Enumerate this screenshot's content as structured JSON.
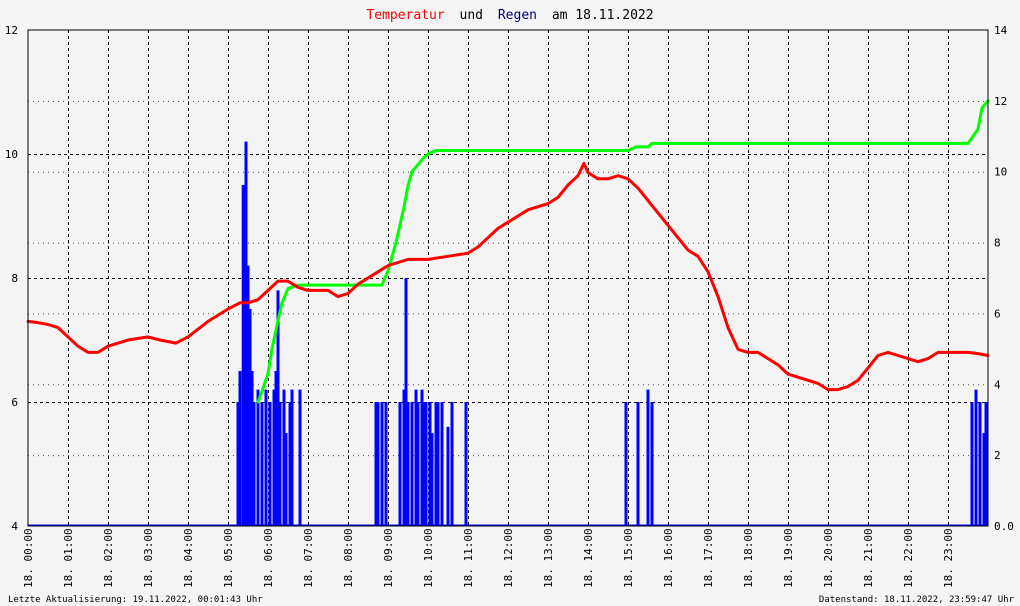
{
  "chart_data": {
    "type": "line",
    "title": {
      "part1": "Temperatur",
      "part2": "und",
      "part3": "Regen",
      "part4": "am 18.11.2022",
      "color_temp": "#ff0000",
      "color_rain": "#000080"
    },
    "x_tick_labels": [
      "18. 00:00",
      "18. 01:00",
      "18. 02:00",
      "18. 03:00",
      "18. 04:00",
      "18. 05:00",
      "18. 06:00",
      "18. 07:00",
      "18. 08:00",
      "18. 09:00",
      "18. 10:00",
      "18. 11:00",
      "18. 12:00",
      "18. 13:00",
      "18. 14:00",
      "18. 15:00",
      "18. 16:00",
      "18. 17:00",
      "18. 18:00",
      "18. 19:00",
      "18. 20:00",
      "18. 21:00",
      "18. 22:00",
      "18. 23:00"
    ],
    "x_range_hours": [
      0,
      24
    ],
    "y_left": {
      "ticks": [
        "4",
        "6",
        "8",
        "10",
        "12"
      ],
      "range": [
        4,
        12
      ],
      "color": "#000000"
    },
    "y_right": {
      "ticks": [
        "0.0",
        "2",
        "4",
        "6",
        "8",
        "10",
        "12",
        "14"
      ],
      "range": [
        0,
        14
      ],
      "color": "#00c000"
    },
    "grid": true,
    "series": [
      {
        "key": "temperature",
        "color": "#ff0000",
        "axis": "left",
        "x": [
          0,
          0.25,
          0.5,
          0.75,
          1.0,
          1.25,
          1.5,
          1.75,
          2.0,
          2.5,
          3.0,
          3.3,
          3.7,
          4.0,
          4.5,
          5.0,
          5.3,
          5.5,
          5.75,
          6.0,
          6.25,
          6.5,
          6.75,
          7.0,
          7.5,
          7.75,
          8.0,
          8.25,
          8.5,
          8.75,
          9.0,
          9.25,
          9.5,
          9.75,
          10.0,
          10.5,
          11.0,
          11.25,
          11.5,
          11.75,
          12.0,
          12.25,
          12.5,
          12.75,
          13.0,
          13.25,
          13.5,
          13.75,
          13.9,
          14.0,
          14.25,
          14.5,
          14.75,
          15.0,
          15.25,
          15.5,
          15.75,
          16.0,
          16.25,
          16.5,
          16.75,
          17.0,
          17.25,
          17.5,
          17.75,
          18.0,
          18.25,
          18.5,
          18.75,
          19.0,
          19.25,
          19.5,
          19.75,
          20.0,
          20.25,
          20.5,
          20.75,
          21.0,
          21.25,
          21.5,
          21.75,
          22.0,
          22.25,
          22.5,
          22.75,
          23.0,
          23.25,
          23.5,
          23.75,
          24.0
        ],
        "y": [
          7.3,
          7.28,
          7.25,
          7.2,
          7.05,
          6.9,
          6.8,
          6.8,
          6.9,
          7.0,
          7.05,
          7.0,
          6.95,
          7.05,
          7.3,
          7.5,
          7.6,
          7.6,
          7.65,
          7.8,
          7.95,
          7.95,
          7.85,
          7.8,
          7.8,
          7.7,
          7.75,
          7.9,
          8.0,
          8.1,
          8.2,
          8.25,
          8.3,
          8.3,
          8.3,
          8.35,
          8.4,
          8.5,
          8.65,
          8.8,
          8.9,
          9.0,
          9.1,
          9.15,
          9.2,
          9.3,
          9.5,
          9.65,
          9.85,
          9.7,
          9.6,
          9.6,
          9.65,
          9.6,
          9.45,
          9.25,
          9.05,
          8.85,
          8.65,
          8.45,
          8.35,
          8.1,
          7.7,
          7.2,
          6.85,
          6.8,
          6.8,
          6.7,
          6.6,
          6.45,
          6.4,
          6.35,
          6.3,
          6.2,
          6.2,
          6.25,
          6.35,
          6.55,
          6.75,
          6.8,
          6.75,
          6.7,
          6.65,
          6.7,
          6.8,
          6.8,
          6.8,
          6.8,
          6.78,
          6.75
        ]
      },
      {
        "key": "rain_cumulative",
        "color": "#00ff00",
        "axis": "right",
        "x": [
          5.75,
          5.85,
          6.0,
          6.1,
          6.25,
          6.35,
          6.5,
          6.75,
          7.0,
          7.5,
          8.0,
          8.5,
          8.7,
          8.85,
          9.0,
          9.1,
          9.2,
          9.3,
          9.4,
          9.5,
          9.6,
          9.75,
          9.9,
          10.0,
          10.2,
          10.5,
          11.0,
          12.0,
          13.0,
          14.0,
          14.5,
          15.0,
          15.2,
          15.5,
          15.6,
          16.0,
          18.0,
          20.0,
          22.0,
          23.0,
          23.5,
          23.75,
          23.85,
          24.0
        ],
        "y": [
          3.5,
          3.8,
          4.3,
          5.0,
          5.8,
          6.3,
          6.7,
          6.8,
          6.8,
          6.8,
          6.8,
          6.8,
          6.8,
          6.8,
          7.2,
          7.6,
          8.0,
          8.5,
          9.0,
          9.6,
          10.0,
          10.2,
          10.4,
          10.5,
          10.6,
          10.6,
          10.6,
          10.6,
          10.6,
          10.6,
          10.6,
          10.6,
          10.7,
          10.7,
          10.8,
          10.8,
          10.8,
          10.8,
          10.8,
          10.8,
          10.8,
          11.2,
          11.8,
          12.0
        ]
      },
      {
        "key": "rain_rate",
        "color": "#0000ff",
        "axis": "left",
        "type": "bar",
        "x": [
          5.25,
          5.3,
          5.38,
          5.45,
          5.5,
          5.55,
          5.6,
          5.65,
          5.75,
          5.85,
          5.95,
          6.05,
          6.15,
          6.2,
          6.25,
          6.3,
          6.4,
          6.45,
          6.55,
          6.6,
          6.8,
          8.7,
          8.75,
          8.85,
          8.95,
          9.3,
          9.4,
          9.45,
          9.5,
          9.6,
          9.7,
          9.75,
          9.85,
          9.9,
          9.95,
          10.05,
          10.1,
          10.2,
          10.25,
          10.35,
          10.5,
          10.6,
          10.95,
          14.95,
          15.25,
          15.5,
          15.6,
          23.6,
          23.7,
          23.8,
          23.9,
          23.95
        ],
        "y": [
          6,
          6.5,
          9.5,
          10.2,
          8.2,
          7.5,
          6.5,
          6,
          6.2,
          6,
          6.2,
          6,
          6.2,
          6.5,
          7.8,
          6,
          6.2,
          5.5,
          6,
          6.2,
          6.2,
          6,
          6,
          6,
          6,
          6,
          6.2,
          8,
          6,
          6,
          6.2,
          6,
          6.2,
          6,
          6,
          6,
          5.5,
          6,
          6,
          6,
          5.6,
          6,
          6,
          6,
          6,
          6.2,
          6,
          6,
          6.2,
          6,
          5.5,
          6
        ]
      }
    ],
    "footer": {
      "left": "Letzte Aktualisierung: 19.11.2022, 00:01:43 Uhr",
      "right": "Datenstand: 18.11.2022, 23:59:47 Uhr"
    }
  }
}
